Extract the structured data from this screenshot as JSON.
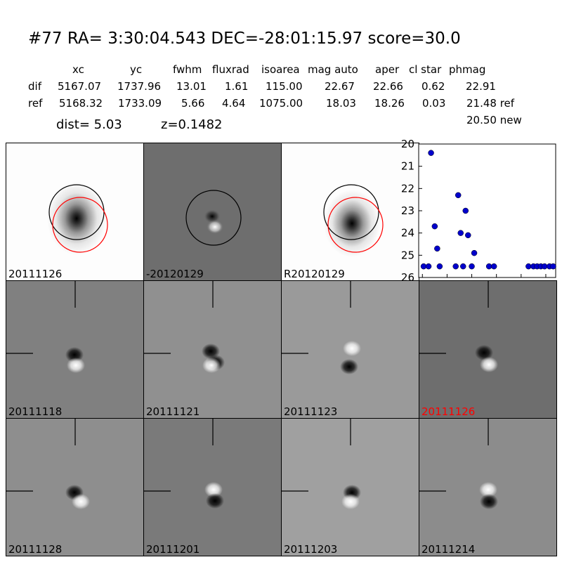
{
  "header": {
    "title": "#77   RA= 3:30:04.543 DEC=-28:01:15.97       score=30.0"
  },
  "table": {
    "columns": [
      "xc",
      "yc",
      "fwhm",
      "fluxrad",
      "isoarea",
      "mag auto",
      "aper",
      "cl star",
      "phmag"
    ],
    "rows": [
      {
        "label": "dif",
        "values": [
          "5167.07",
          "1737.96",
          "13.01",
          "1.61",
          "115.00",
          "22.67",
          "22.66",
          "0.62",
          "22.91"
        ]
      },
      {
        "label": "ref",
        "values": [
          "5168.32",
          "1733.09",
          "5.66",
          "4.64",
          "1075.00",
          "18.03",
          "18.26",
          "0.03",
          "21.48 ref"
        ]
      }
    ],
    "extra": "20.50 new"
  },
  "info": {
    "dist": "dist=  5.03",
    "z": "z=0.1482"
  },
  "top_panels": [
    {
      "label": "20111126"
    },
    {
      "label": "-20120129"
    },
    {
      "label": "R20120129"
    }
  ],
  "stamps": [
    {
      "label": "20111118",
      "label_color": "#000000"
    },
    {
      "label": "20111121",
      "label_color": "#000000"
    },
    {
      "label": "20111123",
      "label_color": "#000000"
    },
    {
      "label": "20111126",
      "label_color": "#ff0000"
    },
    {
      "label": "20111128",
      "label_color": "#000000"
    },
    {
      "label": "20111201",
      "label_color": "#000000"
    },
    {
      "label": "20111203",
      "label_color": "#000000"
    },
    {
      "label": "20111214",
      "label_color": "#000000"
    }
  ],
  "chart_data": {
    "type": "scatter",
    "xlim": [
      -3,
      108
    ],
    "ylim": [
      26,
      20
    ],
    "y_inverted": true,
    "xticks": [
      "0",
      "20",
      "40",
      "60",
      "80",
      "100"
    ],
    "yticks": [
      "20",
      "21",
      "22",
      "23",
      "24",
      "25",
      "26"
    ],
    "marker_color": "#0000cc",
    "points": [
      {
        "x": 1,
        "y": 25.5
      },
      {
        "x": 5,
        "y": 25.5
      },
      {
        "x": 7,
        "y": 20.4
      },
      {
        "x": 10,
        "y": 23.7
      },
      {
        "x": 12,
        "y": 24.7
      },
      {
        "x": 14,
        "y": 25.5
      },
      {
        "x": 27,
        "y": 25.5
      },
      {
        "x": 29,
        "y": 22.3
      },
      {
        "x": 31,
        "y": 24.0
      },
      {
        "x": 33,
        "y": 25.5
      },
      {
        "x": 35,
        "y": 23.0
      },
      {
        "x": 37,
        "y": 24.1
      },
      {
        "x": 40,
        "y": 25.5
      },
      {
        "x": 42,
        "y": 24.9
      },
      {
        "x": 54,
        "y": 25.5
      },
      {
        "x": 58,
        "y": 25.5
      },
      {
        "x": 86,
        "y": 25.5
      },
      {
        "x": 90,
        "y": 25.5
      },
      {
        "x": 93,
        "y": 25.5
      },
      {
        "x": 96,
        "y": 25.5
      },
      {
        "x": 99,
        "y": 25.5
      },
      {
        "x": 103,
        "y": 25.5
      },
      {
        "x": 106,
        "y": 25.5
      }
    ]
  }
}
